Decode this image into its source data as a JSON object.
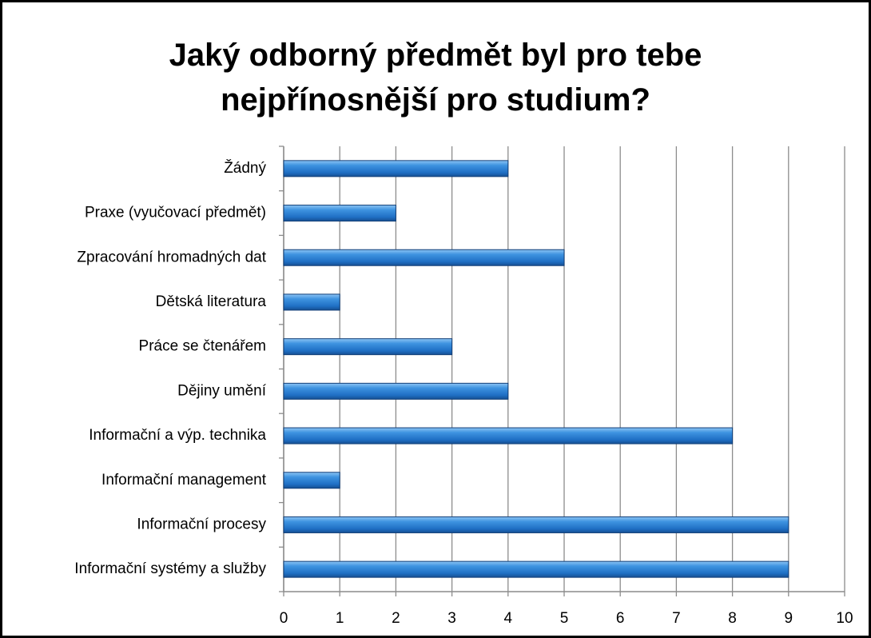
{
  "chart_data": {
    "type": "bar",
    "orientation": "horizontal",
    "title": "Jaký odborný předmět byl pro tebe nejpřínosnější pro studium?",
    "categories": [
      "Žádný",
      "Praxe (vyučovací předmět)",
      "Zpracování hromadných dat",
      "Dětská literatura",
      "Práce se čtenářem",
      "Dějiny umění",
      "Informační a výp. technika",
      "Informační management",
      "Informační procesy",
      "Informační systémy a služby"
    ],
    "values": [
      4,
      2,
      5,
      1,
      3,
      4,
      8,
      1,
      9,
      9
    ],
    "color": "#2f7fd0",
    "xlim": [
      0,
      10
    ],
    "xticks": [
      0,
      1,
      2,
      3,
      4,
      5,
      6,
      7,
      8,
      9,
      10
    ],
    "grid": true
  }
}
